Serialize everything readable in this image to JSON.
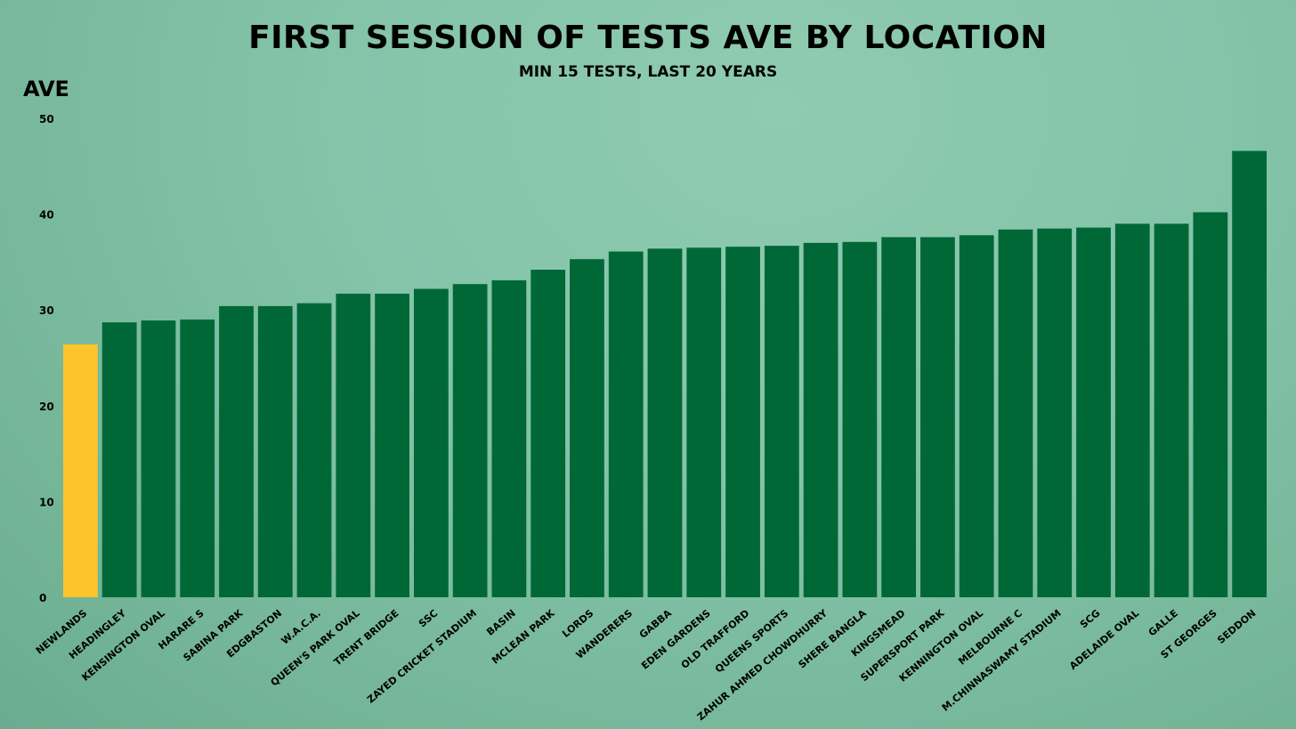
{
  "chart_data": {
    "type": "bar",
    "title": "FIRST SESSION OF TESTS AVE BY LOCATION",
    "subtitle": "MIN 15 TESTS, LAST 20 YEARS",
    "ylabel": "AVE",
    "xlabel": "",
    "ylim": [
      0,
      50
    ],
    "yticks": [
      0,
      10,
      20,
      30,
      40,
      50
    ],
    "grid": false,
    "categories": [
      "NEWLANDS",
      "HEADINGLEY",
      "KENSINGTON OVAL",
      "HARARE S",
      "SABINA PARK",
      "EDGBASTON",
      "W.A.C.A.",
      "QUEEN'S PARK OVAL",
      "TRENT BRIDGE",
      "SSC",
      "ZAYED CRICKET STADIUM",
      "BASIN",
      "MCLEAN PARK",
      "LORDS",
      "WANDERERS",
      "GABBA",
      "EDEN GARDENS",
      "OLD TRAFFORD",
      "QUEENS SPORTS",
      "ZAHUR AHMED CHOWDHURRY",
      "SHERE BANGLA",
      "KINGSMEAD",
      "SUPERSPORT PARK",
      "KENNINGTON OVAL",
      "MELBOURNE C",
      "M.CHINNASWAMY STADIUM",
      "SCG",
      "ADELAIDE OVAL",
      "GALLE",
      "ST GEORGES",
      "SEDDON"
    ],
    "values": [
      26.4,
      28.7,
      28.9,
      29.0,
      30.4,
      30.4,
      30.7,
      31.7,
      31.7,
      32.2,
      32.7,
      33.1,
      34.2,
      35.3,
      36.1,
      36.4,
      36.5,
      36.6,
      36.7,
      37.0,
      37.1,
      37.6,
      37.6,
      37.8,
      38.4,
      38.5,
      38.6,
      39.0,
      39.0,
      40.2,
      46.6
    ],
    "highlight_index": 0,
    "colors": {
      "bar": "#006837",
      "highlight": "#fcc42a",
      "text": "#000000"
    }
  }
}
